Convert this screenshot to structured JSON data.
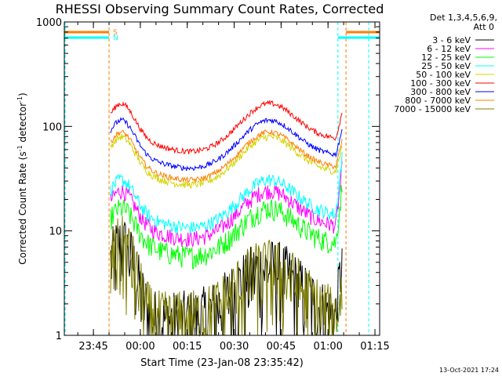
{
  "chart_data": {
    "type": "line",
    "title": "RHESSI Observing Summary Count Rates, Corrected",
    "xlabel": "Start Time (23-Jan-08 23:35:42)",
    "ylabel": "Corrected Count Rate (s⁻¹ detector⁻¹)",
    "ylabel_main": "Corrected Count Rate (s",
    "ylabel_sup1": "-1",
    "ylabel_mid": " detector",
    "ylabel_sup2": "-1",
    "ylabel_end": ")",
    "y_scale": "log",
    "ylim": [
      1,
      1000
    ],
    "xlim": [
      "23:35:42",
      "01:16:30"
    ],
    "x_ticks": [
      "23:45",
      "00:00",
      "00:15",
      "00:30",
      "00:45",
      "01:00",
      "01:15"
    ],
    "y_ticks": [
      "1",
      "10",
      "100",
      "1000"
    ],
    "legend_position": "right",
    "detector_info_line1": "Det 1,3,4,5,6,9,",
    "detector_info_line2": "Att 0",
    "footer_date": "13-Oct-2021 17:24",
    "flags": [
      {
        "letter": "S",
        "color": "#ff7f00"
      },
      {
        "letter": "N",
        "color": "#00ffff"
      }
    ],
    "markers": [
      {
        "time": "23:35:42",
        "color": "#00ffff"
      },
      {
        "time": "23:50:00",
        "color": "#ff7f00"
      },
      {
        "time": "01:03:10",
        "color": "#00ffff"
      },
      {
        "time": "01:05:45",
        "color": "#ff7f00"
      },
      {
        "time": "01:13:00",
        "color": "#00ffff"
      }
    ],
    "series": [
      {
        "name": "3 - 6 keV",
        "color": "#000000"
      },
      {
        "name": "6 - 12 keV",
        "color": "#ff00ff"
      },
      {
        "name": "12 - 25 keV",
        "color": "#00ff00"
      },
      {
        "name": "25 - 50 keV",
        "color": "#00ffff"
      },
      {
        "name": "50 - 100 keV",
        "color": "#d4d400"
      },
      {
        "name": "100 - 300 keV",
        "color": "#ff0000"
      },
      {
        "name": "300 - 800 keV",
        "color": "#0000ff"
      },
      {
        "name": "800 - 7000 keV",
        "color": "#ff7f00"
      },
      {
        "name": "7000 - 15000 keV",
        "color": "#7f7f00"
      }
    ]
  }
}
